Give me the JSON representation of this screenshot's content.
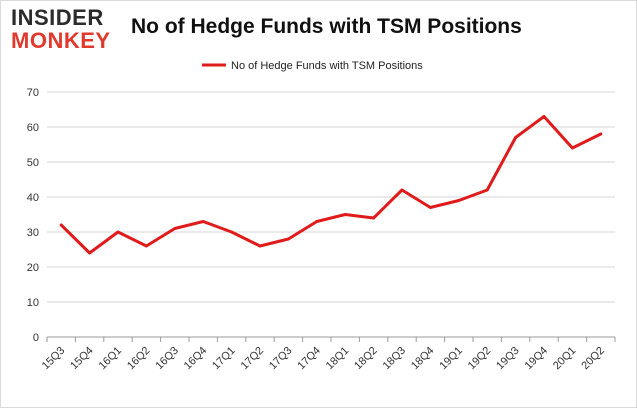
{
  "logo": {
    "line1": "INSIDER",
    "line2": "MONKEY"
  },
  "colors": {
    "series": "#e01b1b",
    "grid": "#d4d4d4",
    "axis": "#333333",
    "logo_accent": "#e03a2f"
  },
  "chart_data": {
    "type": "line",
    "title": "No of Hedge Funds with TSM Positions",
    "xlabel": "",
    "ylabel": "",
    "ylim": [
      0,
      70
    ],
    "yticks": [
      0,
      10,
      20,
      30,
      40,
      50,
      60,
      70
    ],
    "grid": true,
    "legend_placement": "top-center",
    "categories": [
      "15Q3",
      "15Q4",
      "16Q1",
      "16Q2",
      "16Q3",
      "16Q4",
      "17Q1",
      "17Q2",
      "17Q3",
      "17Q4",
      "18Q1",
      "18Q2",
      "18Q3",
      "18Q4",
      "19Q1",
      "19Q2",
      "19Q3",
      "19Q4",
      "20Q1",
      "20Q2"
    ],
    "series": [
      {
        "name": "No of Hedge Funds with TSM Positions",
        "values": [
          32,
          24,
          30,
          26,
          31,
          33,
          30,
          26,
          28,
          33,
          35,
          34,
          42,
          37,
          39,
          42,
          57,
          63,
          54,
          58
        ]
      }
    ]
  }
}
